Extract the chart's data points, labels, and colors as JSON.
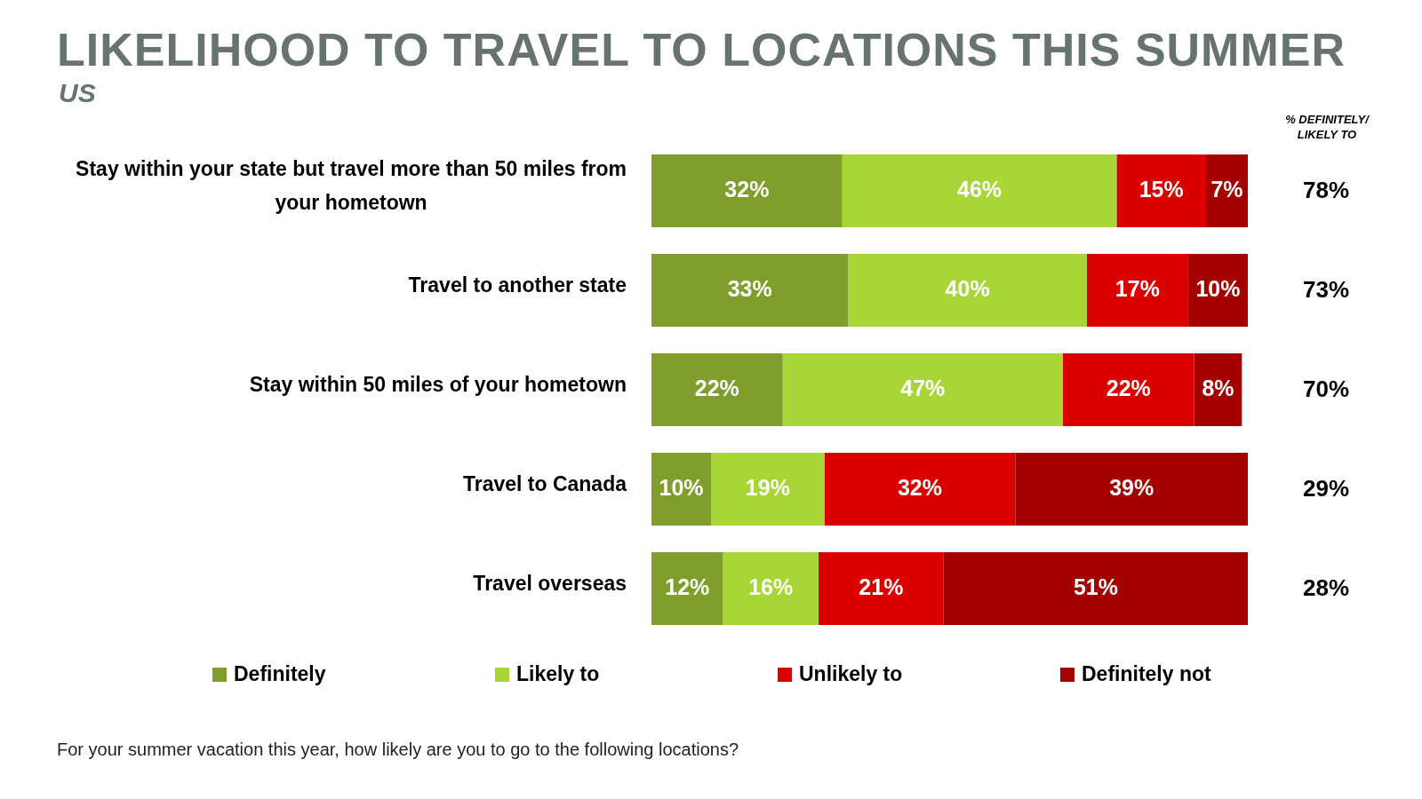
{
  "chart_data": {
    "type": "bar",
    "orientation": "horizontal",
    "stacked": true,
    "title": "LIKELIHOOD TO TRAVEL TO LOCATIONS THIS SUMMER",
    "subtitle": "US",
    "categories": [
      "Stay within your state but travel more than 50 miles from your hometown",
      "Travel to another state",
      "Stay within 50 miles of your hometown",
      "Travel to Canada",
      "Travel overseas"
    ],
    "series": [
      {
        "name": "Definitely",
        "color": "#7f9e2b",
        "values": [
          32,
          33,
          22,
          10,
          12
        ],
        "value_labels": [
          "32%",
          "33%",
          "22%",
          "10%",
          "12%"
        ]
      },
      {
        "name": "Likely to",
        "color": "#a8d637",
        "values": [
          46,
          40,
          47,
          19,
          16
        ],
        "value_labels": [
          "46%",
          "40%",
          "47%",
          "19%",
          "16%"
        ]
      },
      {
        "name": "Unlikely to",
        "color": "#da0000",
        "values": [
          15,
          17,
          22,
          32,
          21
        ],
        "value_labels": [
          "15%",
          "17%",
          "22%",
          "32%",
          "21%"
        ]
      },
      {
        "name": "Definitely not",
        "color": "#a30000",
        "values": [
          7,
          10,
          8,
          39,
          51
        ],
        "value_labels": [
          "7%",
          "10%",
          "8%",
          "39%",
          "51%"
        ]
      }
    ],
    "tick_labels": "y",
    "legend": "bottom",
    "annotations": [
      "% DEFINITELY/ LIKELY TO",
      "78%",
      "73%",
      "70%",
      "29%",
      "28%",
      "For your summer vacation this year, how likely are you to go to the following locations?"
    ]
  }
}
